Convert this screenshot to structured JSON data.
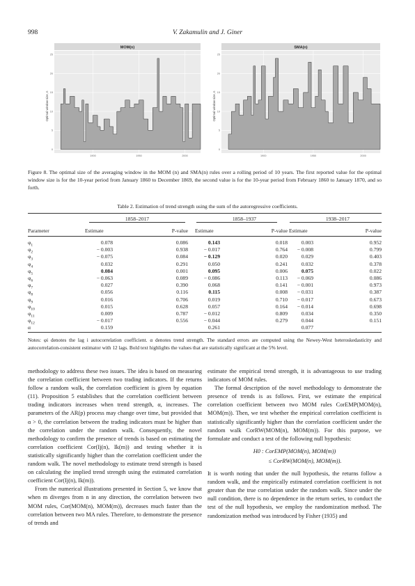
{
  "header": {
    "page_number": "998",
    "authors": "V. Zakamulin and J. Giner"
  },
  "figure": {
    "panels": [
      {
        "title": "MOM(n)",
        "ylabel": "Optimal window size, n",
        "yticks": [
          "0",
          "5",
          "10",
          "15",
          "20",
          "25"
        ],
        "xticks": [
          "1900",
          "1950",
          "2000"
        ]
      },
      {
        "title": "SMA(n)",
        "ylabel": "Optimal window size, n",
        "yticks": [
          "0",
          "5",
          "10",
          "15",
          "20",
          "25"
        ],
        "xticks": [
          "1900",
          "1950",
          "2000"
        ]
      }
    ],
    "caption": "Figure 8. The optimal size of the averaging window in the MOM (n) and SMA(n) rules over a rolling period of 10 years. The first reported value for the optimal window size is for the 10-year period from January 1860 to December 1869, the second value is for the 10-year period from February 1860 to January 1870, and so forth."
  },
  "table": {
    "caption": "Table 2. Estimation of trend strength using the sum of the autoregressive coefficients.",
    "periods": [
      "1858–2017",
      "1858–1937",
      "1938–2017"
    ],
    "param_header": "Parameter",
    "estimate_header": "Estimate",
    "pvalue_header": "P-value",
    "rows": [
      {
        "p": "φ1",
        "c": [
          [
            "0.078",
            "0.086"
          ],
          [
            "0.143",
            "0.018"
          ],
          [
            "0.003",
            "0.952"
          ]
        ],
        "b": [
          false,
          true,
          false
        ]
      },
      {
        "p": "φ2",
        "c": [
          [
            "− 0.003",
            "0.938"
          ],
          [
            "− 0.017",
            "0.764"
          ],
          [
            "− 0.008",
            "0.799"
          ]
        ],
        "b": [
          false,
          false,
          false
        ]
      },
      {
        "p": "φ3",
        "c": [
          [
            "− 0.075",
            "0.084"
          ],
          [
            "− 0.129",
            "0.020"
          ],
          [
            "0.029",
            "0.403"
          ]
        ],
        "b": [
          false,
          true,
          false
        ]
      },
      {
        "p": "φ4",
        "c": [
          [
            "0.032",
            "0.291"
          ],
          [
            "0.050",
            "0.241"
          ],
          [
            "0.032",
            "0.378"
          ]
        ],
        "b": [
          false,
          false,
          false
        ]
      },
      {
        "p": "φ5",
        "c": [
          [
            "0.084",
            "0.001"
          ],
          [
            "0.095",
            "0.006"
          ],
          [
            "0.075",
            "0.022"
          ]
        ],
        "b": [
          true,
          true,
          true
        ]
      },
      {
        "p": "φ6",
        "c": [
          [
            "− 0.063",
            "0.089"
          ],
          [
            "− 0.086",
            "0.113"
          ],
          [
            "− 0.069",
            "0.086"
          ]
        ],
        "b": [
          false,
          false,
          false
        ]
      },
      {
        "p": "φ7",
        "c": [
          [
            "0.027",
            "0.390"
          ],
          [
            "0.068",
            "0.141"
          ],
          [
            "− 0.001",
            "0.973"
          ]
        ],
        "b": [
          false,
          false,
          false
        ]
      },
      {
        "p": "φ8",
        "c": [
          [
            "0.056",
            "0.116"
          ],
          [
            "0.115",
            "0.008"
          ],
          [
            "− 0.031",
            "0.387"
          ]
        ],
        "b": [
          false,
          true,
          false
        ]
      },
      {
        "p": "φ9",
        "c": [
          [
            "0.016",
            "0.706"
          ],
          [
            "0.019",
            "0.710"
          ],
          [
            "− 0.017",
            "0.673"
          ]
        ],
        "b": [
          false,
          false,
          false
        ]
      },
      {
        "p": "φ10",
        "c": [
          [
            "0.015",
            "0.628"
          ],
          [
            "0.057",
            "0.164"
          ],
          [
            "− 0.014",
            "0.698"
          ]
        ],
        "b": [
          false,
          false,
          false
        ]
      },
      {
        "p": "φ11",
        "c": [
          [
            "0.009",
            "0.787"
          ],
          [
            "− 0.012",
            "0.809"
          ],
          [
            "0.034",
            "0.350"
          ]
        ],
        "b": [
          false,
          false,
          false
        ]
      },
      {
        "p": "φ12",
        "c": [
          [
            "− 0.017",
            "0.556"
          ],
          [
            "− 0.044",
            "0.279"
          ],
          [
            "0.044",
            "0.151"
          ]
        ],
        "b": [
          false,
          false,
          false
        ]
      },
      {
        "p": "α",
        "c": [
          [
            "0.159",
            ""
          ],
          [
            "0.261",
            ""
          ],
          [
            "0.077",
            ""
          ]
        ],
        "b": [
          false,
          false,
          false
        ]
      }
    ],
    "notes": "Notes: φi denotes the lag i autocorrelation coefficient. α denotes trend strength. The standard errors are computed using the Newey-West heteroskedasticity and autocorrelation-consistent estimator with 12 lags. Bold text highlights the values that are statistically significant at the 5% level."
  },
  "body": {
    "left_col": [
      "methodology to address these two issues. The idea is based on measuring the correlation coefficient between two trading indicators. If the returns follow a random walk, the correlation coefficient is given by equation (11). Proposition 5 establishes that the correlation coefficient between trading indicators increases when trend strength, α, increases. The parameters of the AR(p) process may change over time, but provided that α > 0, the correlation between the trading indicators must be higher than the correlation under the random walk. Consequently, the novel methodology to confirm the presence of trends is based on estimating the correlation coefficient Cor(Ij(n), Ik(m)) and testing whether it is statistically significantly higher than the correlation coefficient under the random walk. The novel methodology to estimate trend strength is based on calculating the implied trend strength using the estimated correlation coefficient Cor(Ij(n), Ik(m)).",
      "From the numerical illustrations presented in Section 5, we know that when m diverges from n in any direction, the correlation between two MOM rules, Cor(MOM(n), MOM(m)), decreases much faster than the correlation between two MA rules. Therefore, to demonstrate the presence of trends and"
    ],
    "right_col": [
      "estimate the empirical trend strength, it is advantageous to use trading indicators of MOM rules.",
      "The formal description of the novel methodology to demonstrate the presence of trends is as follows. First, we estimate the empirical correlation coefficient between two MOM rules CorEMP(MOM(n), MOM(m)). Then, we test whether the empirical correlation coefficient is statistically significantly higher than the correlation coefficient under the random walk CorRW(MOM(n), MOM(m)). For this purpose, we formulate and conduct a test of the following null hypothesis:",
      "H0 : CorEMP(MOM(n), MOM(m))",
      "≤ CorRW(MOM(n), MOM(m)).",
      "It is worth noting that under the null hypothesis, the returns follow a random walk, and the empirically estimated correlation coefficient is not greater than the true correlation under the random walk. Since under the null condition, there is no dependence in the return series, to conduct the test of the null hypothesis, we employ the randomization method. The randomization method was introduced by Fisher (1935) and"
    ]
  }
}
